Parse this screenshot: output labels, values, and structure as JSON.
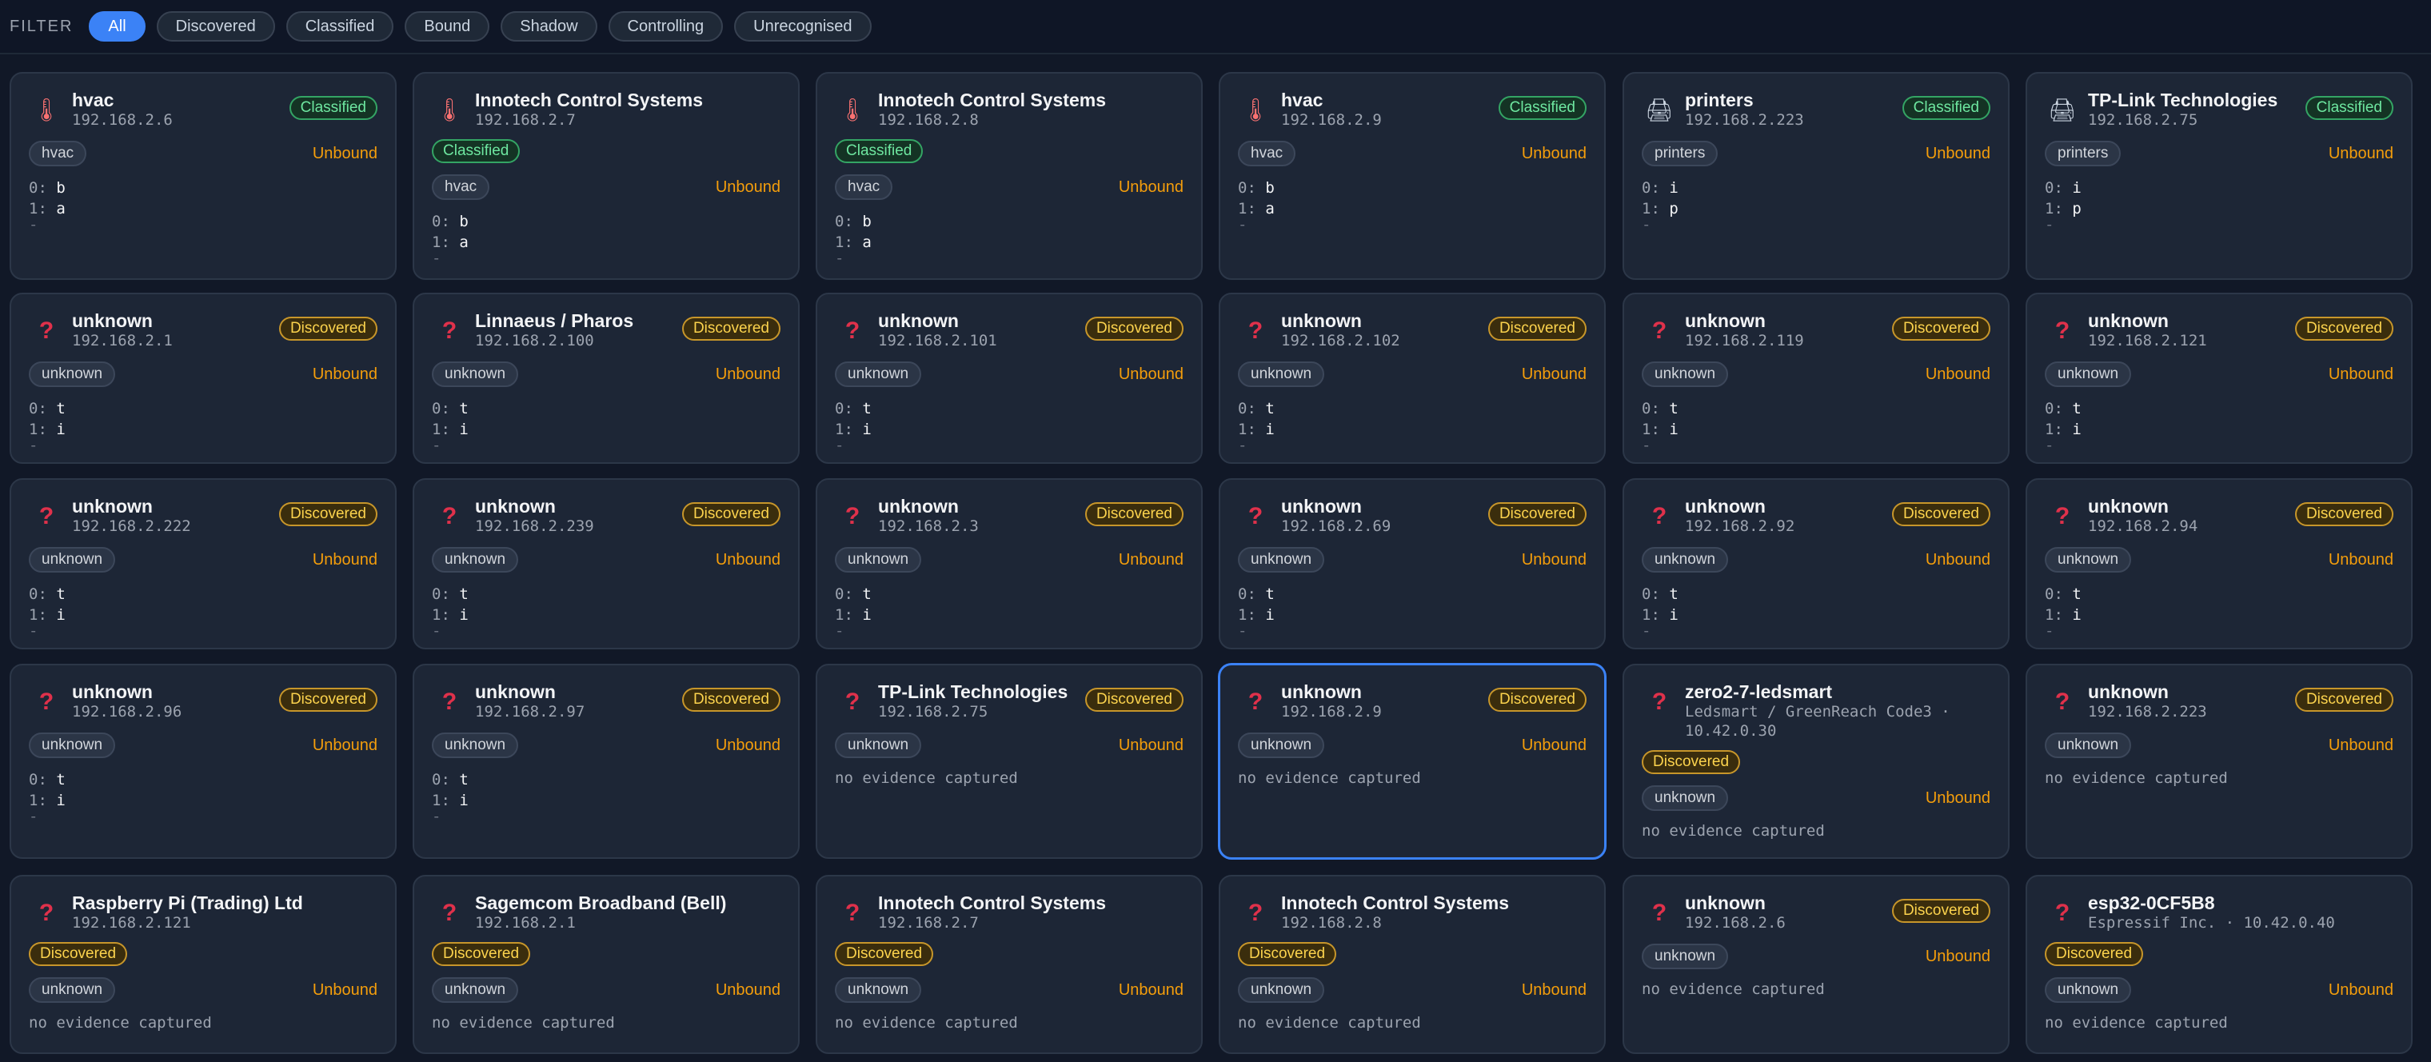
{
  "filter": {
    "label": "FILTER",
    "options": [
      "All",
      "Discovered",
      "Classified",
      "Bound",
      "Shadow",
      "Controlling",
      "Unrecognised"
    ],
    "active": "All"
  },
  "devices": [
    {
      "icon": "thermometer-icon",
      "title": "hvac",
      "sub": [
        "192.168.2.6"
      ],
      "status": "Classified",
      "status_pos": "right",
      "tag": "hvac",
      "binding": "Unbound",
      "evidence": [
        [
          "0:",
          "b"
        ],
        [
          "1:",
          "a"
        ]
      ]
    },
    {
      "icon": "thermometer-icon",
      "title": "Innotech Control Systems",
      "sub": [
        "192.168.2.7"
      ],
      "status": "Classified",
      "status_pos": "below",
      "tag": "hvac",
      "binding": "Unbound",
      "evidence": [
        [
          "0:",
          "b"
        ],
        [
          "1:",
          "a"
        ]
      ]
    },
    {
      "icon": "thermometer-icon",
      "title": "Innotech Control Systems",
      "sub": [
        "192.168.2.8"
      ],
      "status": "Classified",
      "status_pos": "below",
      "tag": "hvac",
      "binding": "Unbound",
      "evidence": [
        [
          "0:",
          "b"
        ],
        [
          "1:",
          "a"
        ]
      ]
    },
    {
      "icon": "thermometer-icon",
      "title": "hvac",
      "sub": [
        "192.168.2.9"
      ],
      "status": "Classified",
      "status_pos": "right",
      "tag": "hvac",
      "binding": "Unbound",
      "evidence": [
        [
          "0:",
          "b"
        ],
        [
          "1:",
          "a"
        ]
      ]
    },
    {
      "icon": "printer-icon",
      "title": "printers",
      "sub": [
        "192.168.2.223"
      ],
      "status": "Classified",
      "status_pos": "right",
      "tag": "printers",
      "binding": "Unbound",
      "evidence": [
        [
          "0:",
          "i"
        ],
        [
          "1:",
          "p"
        ]
      ]
    },
    {
      "icon": "printer-icon",
      "title": "TP-Link Technologies",
      "sub": [
        "192.168.2.75"
      ],
      "status": "Classified",
      "status_pos": "right",
      "tag": "printers",
      "binding": "Unbound",
      "evidence": [
        [
          "0:",
          "i"
        ],
        [
          "1:",
          "p"
        ]
      ]
    },
    {
      "icon": "question-icon",
      "title": "unknown",
      "sub": [
        "192.168.2.1"
      ],
      "status": "Discovered",
      "status_pos": "right",
      "tag": "unknown",
      "binding": "Unbound",
      "evidence": [
        [
          "0:",
          "t"
        ],
        [
          "1:",
          "i"
        ]
      ]
    },
    {
      "icon": "question-icon",
      "title": "Linnaeus / Pharos",
      "sub": [
        "192.168.2.100"
      ],
      "status": "Discovered",
      "status_pos": "right",
      "tag": "unknown",
      "binding": "Unbound",
      "evidence": [
        [
          "0:",
          "t"
        ],
        [
          "1:",
          "i"
        ]
      ]
    },
    {
      "icon": "question-icon",
      "title": "unknown",
      "sub": [
        "192.168.2.101"
      ],
      "status": "Discovered",
      "status_pos": "right",
      "tag": "unknown",
      "binding": "Unbound",
      "evidence": [
        [
          "0:",
          "t"
        ],
        [
          "1:",
          "i"
        ]
      ]
    },
    {
      "icon": "question-icon",
      "title": "unknown",
      "sub": [
        "192.168.2.102"
      ],
      "status": "Discovered",
      "status_pos": "right",
      "tag": "unknown",
      "binding": "Unbound",
      "evidence": [
        [
          "0:",
          "t"
        ],
        [
          "1:",
          "i"
        ]
      ]
    },
    {
      "icon": "question-icon",
      "title": "unknown",
      "sub": [
        "192.168.2.119"
      ],
      "status": "Discovered",
      "status_pos": "right",
      "tag": "unknown",
      "binding": "Unbound",
      "evidence": [
        [
          "0:",
          "t"
        ],
        [
          "1:",
          "i"
        ]
      ]
    },
    {
      "icon": "question-icon",
      "title": "unknown",
      "sub": [
        "192.168.2.121"
      ],
      "status": "Discovered",
      "status_pos": "right",
      "tag": "unknown",
      "binding": "Unbound",
      "evidence": [
        [
          "0:",
          "t"
        ],
        [
          "1:",
          "i"
        ]
      ]
    },
    {
      "icon": "question-icon",
      "title": "unknown",
      "sub": [
        "192.168.2.222"
      ],
      "status": "Discovered",
      "status_pos": "right",
      "tag": "unknown",
      "binding": "Unbound",
      "evidence": [
        [
          "0:",
          "t"
        ],
        [
          "1:",
          "i"
        ]
      ]
    },
    {
      "icon": "question-icon",
      "title": "unknown",
      "sub": [
        "192.168.2.239"
      ],
      "status": "Discovered",
      "status_pos": "right",
      "tag": "unknown",
      "binding": "Unbound",
      "evidence": [
        [
          "0:",
          "t"
        ],
        [
          "1:",
          "i"
        ]
      ]
    },
    {
      "icon": "question-icon",
      "title": "unknown",
      "sub": [
        "192.168.2.3"
      ],
      "status": "Discovered",
      "status_pos": "right",
      "tag": "unknown",
      "binding": "Unbound",
      "evidence": [
        [
          "0:",
          "t"
        ],
        [
          "1:",
          "i"
        ]
      ]
    },
    {
      "icon": "question-icon",
      "title": "unknown",
      "sub": [
        "192.168.2.69"
      ],
      "status": "Discovered",
      "status_pos": "right",
      "tag": "unknown",
      "binding": "Unbound",
      "evidence": [
        [
          "0:",
          "t"
        ],
        [
          "1:",
          "i"
        ]
      ]
    },
    {
      "icon": "question-icon",
      "title": "unknown",
      "sub": [
        "192.168.2.92"
      ],
      "status": "Discovered",
      "status_pos": "right",
      "tag": "unknown",
      "binding": "Unbound",
      "evidence": [
        [
          "0:",
          "t"
        ],
        [
          "1:",
          "i"
        ]
      ]
    },
    {
      "icon": "question-icon",
      "title": "unknown",
      "sub": [
        "192.168.2.94"
      ],
      "status": "Discovered",
      "status_pos": "right",
      "tag": "unknown",
      "binding": "Unbound",
      "evidence": [
        [
          "0:",
          "t"
        ],
        [
          "1:",
          "i"
        ]
      ]
    },
    {
      "icon": "question-icon",
      "title": "unknown",
      "sub": [
        "192.168.2.96"
      ],
      "status": "Discovered",
      "status_pos": "right",
      "tag": "unknown",
      "binding": "Unbound",
      "evidence": [
        [
          "0:",
          "t"
        ],
        [
          "1:",
          "i"
        ]
      ]
    },
    {
      "icon": "question-icon",
      "title": "unknown",
      "sub": [
        "192.168.2.97"
      ],
      "status": "Discovered",
      "status_pos": "right",
      "tag": "unknown",
      "binding": "Unbound",
      "evidence": [
        [
          "0:",
          "t"
        ],
        [
          "1:",
          "i"
        ]
      ]
    },
    {
      "icon": "question-icon",
      "title": "TP-Link Technologies",
      "sub": [
        "192.168.2.75"
      ],
      "status": "Discovered",
      "status_pos": "right",
      "tag": "unknown",
      "binding": "Unbound",
      "evidence": [],
      "no_evidence": "no evidence captured"
    },
    {
      "icon": "question-icon",
      "title": "unknown",
      "sub": [
        "192.168.2.9"
      ],
      "status": "Discovered",
      "status_pos": "right",
      "tag": "unknown",
      "binding": "Unbound",
      "evidence": [],
      "no_evidence": "no evidence captured",
      "selected": true
    },
    {
      "icon": "question-icon",
      "title": "zero2-7-ledsmart",
      "sub": [
        "Ledsmart / GreenReach Code3 ·",
        "10.42.0.30"
      ],
      "status": "Discovered",
      "status_pos": "below",
      "tag": "unknown",
      "binding": "Unbound",
      "evidence": [],
      "no_evidence": "no evidence captured"
    },
    {
      "icon": "question-icon",
      "title": "unknown",
      "sub": [
        "192.168.2.223"
      ],
      "status": "Discovered",
      "status_pos": "right",
      "tag": "unknown",
      "binding": "Unbound",
      "evidence": [],
      "no_evidence": "no evidence captured"
    },
    {
      "icon": "question-icon",
      "title": "Raspberry Pi (Trading) Ltd",
      "sub": [
        "192.168.2.121"
      ],
      "status": "Discovered",
      "status_pos": "below",
      "tag": "unknown",
      "binding": "Unbound",
      "evidence": [],
      "no_evidence": "no evidence captured"
    },
    {
      "icon": "question-icon",
      "title": "Sagemcom Broadband (Bell)",
      "sub": [
        "192.168.2.1"
      ],
      "status": "Discovered",
      "status_pos": "below",
      "tag": "unknown",
      "binding": "Unbound",
      "evidence": [],
      "no_evidence": "no evidence captured"
    },
    {
      "icon": "question-icon",
      "title": "Innotech Control Systems",
      "sub": [
        "192.168.2.7"
      ],
      "status": "Discovered",
      "status_pos": "below",
      "tag": "unknown",
      "binding": "Unbound",
      "evidence": [],
      "no_evidence": "no evidence captured"
    },
    {
      "icon": "question-icon",
      "title": "Innotech Control Systems",
      "sub": [
        "192.168.2.8"
      ],
      "status": "Discovered",
      "status_pos": "below",
      "tag": "unknown",
      "binding": "Unbound",
      "evidence": [],
      "no_evidence": "no evidence captured"
    },
    {
      "icon": "question-icon",
      "title": "unknown",
      "sub": [
        "192.168.2.6"
      ],
      "status": "Discovered",
      "status_pos": "right",
      "tag": "unknown",
      "binding": "Unbound",
      "evidence": [],
      "no_evidence": "no evidence captured"
    },
    {
      "icon": "question-icon",
      "title": "esp32-0CF5B8",
      "sub": [
        "Espressif Inc. · 10.42.0.40"
      ],
      "status": "Discovered",
      "status_pos": "below",
      "tag": "unknown",
      "binding": "Unbound",
      "evidence": [],
      "no_evidence": "no evidence captured"
    }
  ]
}
